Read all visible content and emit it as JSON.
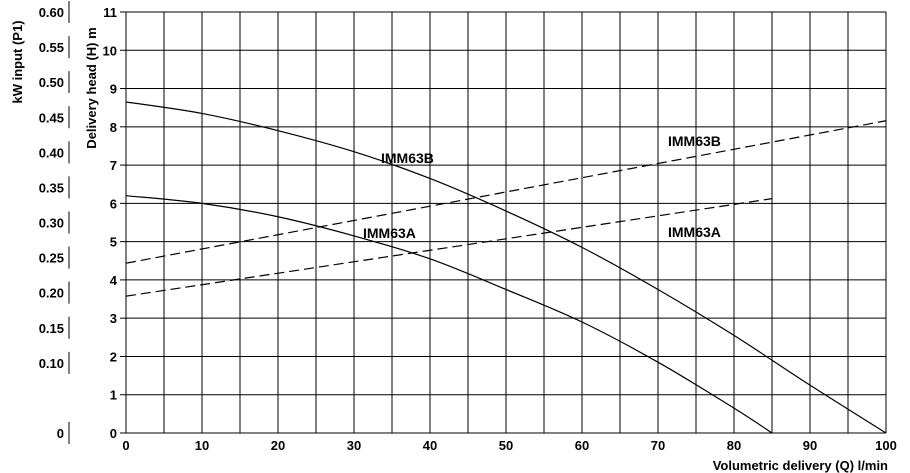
{
  "chart_data": {
    "type": "line",
    "xlabel": "Volumetric delivery (Q) l/min",
    "ylabel": "Delivery head (H) m",
    "y2label": "kW input (P1)",
    "xlim": [
      0,
      100
    ],
    "ylim": [
      0,
      11
    ],
    "y2lim": [
      0,
      0.6
    ],
    "xticks": [
      "0",
      "10",
      "20",
      "30",
      "40",
      "50",
      "60",
      "70",
      "80",
      "90",
      "100"
    ],
    "yticks": [
      "0",
      "1",
      "2",
      "3",
      "4",
      "5",
      "6",
      "7",
      "8",
      "9",
      "10",
      "11"
    ],
    "y2ticks": [
      "0",
      "0.10",
      "0.15",
      "0.20",
      "0.25",
      "0.30",
      "0.35",
      "0.40",
      "0.45",
      "0.50",
      "0.55",
      "0.60"
    ],
    "grid": true,
    "series": [
      {
        "name": "IMM63B",
        "kind": "head",
        "style": "solid",
        "x": [
          0,
          10,
          20,
          30,
          40,
          50,
          60,
          70,
          80,
          90,
          100
        ],
        "y": [
          8.65,
          8.35,
          7.9,
          7.35,
          6.65,
          5.8,
          4.85,
          3.75,
          2.55,
          1.25,
          0
        ]
      },
      {
        "name": "IMM63A",
        "kind": "head",
        "style": "solid",
        "x": [
          0,
          10,
          20,
          30,
          40,
          50,
          60,
          70,
          80,
          85
        ],
        "y": [
          6.2,
          6.0,
          5.65,
          5.15,
          4.55,
          3.75,
          2.9,
          1.85,
          0.65,
          0
        ]
      },
      {
        "name": "IMM63B",
        "kind": "power",
        "style": "dashed",
        "x": [
          0,
          100
        ],
        "y": [
          0.242,
          0.445
        ]
      },
      {
        "name": "IMM63A",
        "kind": "power",
        "style": "dashed",
        "x": [
          0,
          85
        ],
        "y": [
          0.195,
          0.334
        ]
      }
    ],
    "labels": [
      "IMM63B",
      "IMM63B",
      "IMM63A",
      "IMM63A"
    ]
  }
}
